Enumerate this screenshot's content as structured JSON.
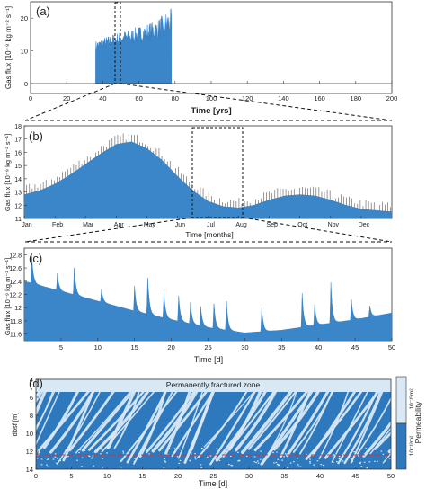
{
  "colors": {
    "fill": "#3a86c8",
    "fill_dark": "#2c74b8",
    "spike": "#555555",
    "fracture_light": "#d8e8f5",
    "fracture_band": "#cfe3f2",
    "axis": "#333333",
    "redline": "#e03030"
  },
  "panels": {
    "a": {
      "label": "(a)",
      "ylabel": "Gas flux [10⁻⁹ kg m⁻² s⁻¹]",
      "xlabel": "Time [yrs]"
    },
    "b": {
      "label": "(b)",
      "ylabel": "Gas flux [10⁻⁹ kg m⁻² s⁻¹]",
      "xlabel": "Time [months]"
    },
    "c": {
      "label": "(c)",
      "ylabel": "Gas flux [10⁻⁹ kg m⁻² s⁻¹]",
      "xlabel": "Time [d]"
    },
    "d": {
      "label": "(d)",
      "ylabel": "dbsf [m]",
      "xlabel": "Time [d]",
      "zone_label": "Permanently fractured zone",
      "colorbar_title": "Permeability",
      "colorbar_high": "10⁻¹⁰m²",
      "colorbar_low": "10⁻¹³m²"
    }
  },
  "chart_data": [
    {
      "panel": "a",
      "type": "area",
      "xlim": [
        0,
        200
      ],
      "ylim": [
        0,
        25
      ],
      "xticks": [
        "0",
        "20",
        "40",
        "60",
        "80",
        "100",
        "120",
        "140",
        "160",
        "180",
        "200"
      ],
      "yticks": [
        "0",
        "10",
        "20"
      ],
      "active_period": [
        36,
        78
      ],
      "envelope_x": [
        36,
        40,
        45,
        50,
        55,
        60,
        65,
        70,
        75,
        78
      ],
      "envelope_y": [
        13,
        14,
        15,
        16,
        16.5,
        17.5,
        18.5,
        19.5,
        22,
        23
      ],
      "base_y": [
        10,
        10.5,
        11,
        11.5,
        12,
        12.5,
        13,
        13.5,
        14,
        14.5
      ],
      "zoom_window": [
        48,
        52
      ]
    },
    {
      "panel": "b",
      "type": "area",
      "ylim": [
        11,
        18
      ],
      "categories": [
        "Jan",
        "Feb",
        "Mar",
        "Apr",
        "May",
        "Jun",
        "Jul",
        "Aug",
        "Sep",
        "Oct",
        "Nov",
        "Dec"
      ],
      "yticks": [
        "11",
        "12",
        "13",
        "14",
        "15",
        "16",
        "17",
        "18"
      ],
      "x": [
        0,
        0.5,
        1,
        1.5,
        2,
        2.5,
        3,
        3.5,
        4,
        4.5,
        5,
        5.5,
        6,
        6.5,
        7,
        7.5,
        8,
        8.5,
        9,
        9.5,
        10,
        10.5,
        11,
        11.5,
        12
      ],
      "values": [
        12.8,
        13.1,
        13.6,
        14.3,
        15.1,
        15.9,
        16.6,
        16.8,
        16.3,
        15.4,
        14.2,
        13.1,
        12.3,
        11.9,
        11.8,
        12.0,
        12.4,
        12.7,
        12.8,
        12.7,
        12.4,
        12.0,
        11.7,
        11.6,
        11.5
      ],
      "zoom_window": [
        5.6,
        7.3
      ]
    },
    {
      "panel": "c",
      "type": "area",
      "xlim": [
        0,
        50
      ],
      "ylim": [
        11.5,
        12.9
      ],
      "xticks": [
        "5",
        "10",
        "15",
        "20",
        "25",
        "30",
        "35",
        "40",
        "45",
        "50"
      ],
      "yticks": [
        "11.6",
        "11.8",
        "12",
        "12.2",
        "12.4",
        "12.6",
        "12.8"
      ],
      "base_x": [
        0,
        5,
        10,
        15,
        20,
        25,
        30,
        35,
        40,
        45,
        50
      ],
      "base_y": [
        12.4,
        12.25,
        12.1,
        11.95,
        11.82,
        11.7,
        11.62,
        11.66,
        11.74,
        11.82,
        11.92
      ],
      "spike_x": [
        1,
        4.5,
        6.8,
        10.5,
        15,
        16.8,
        19,
        21,
        22.6,
        24,
        25.8,
        27.5,
        32.3,
        37.8,
        39.5,
        41.7,
        44.5,
        47
      ],
      "spike_y": [
        12.82,
        12.52,
        12.6,
        12.28,
        12.33,
        12.45,
        12.22,
        12.18,
        12.08,
        12.02,
        12.06,
        12.1,
        12.0,
        12.22,
        12.05,
        12.38,
        12.12,
        12.03
      ]
    },
    {
      "panel": "d",
      "type": "heatmap",
      "xlim": [
        0,
        50
      ],
      "ylim": [
        4,
        14
      ],
      "xticks": [
        "0",
        "5",
        "10",
        "15",
        "20",
        "25",
        "30",
        "35",
        "40",
        "45",
        "50"
      ],
      "yticks": [
        "4",
        "6",
        "8",
        "10",
        "12",
        "14"
      ],
      "fractured_zone_depth": [
        4,
        5.4
      ],
      "red_line_depth": 12.2
    }
  ]
}
